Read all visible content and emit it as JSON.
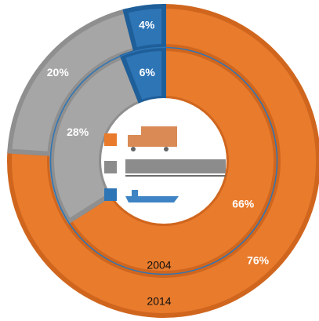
{
  "chart_data": {
    "type": "donut",
    "colors": [
      "#E87B2C",
      "#A6A6A6",
      "#2E75B6"
    ],
    "series": [
      {
        "name": "2014",
        "values": [
          76,
          20,
          4
        ],
        "value_labels": [
          "76%",
          "20%",
          "4%"
        ]
      },
      {
        "name": "2004",
        "values": [
          66,
          28,
          6
        ],
        "value_labels": [
          "66%",
          "28%",
          "6%"
        ]
      }
    ]
  }
}
